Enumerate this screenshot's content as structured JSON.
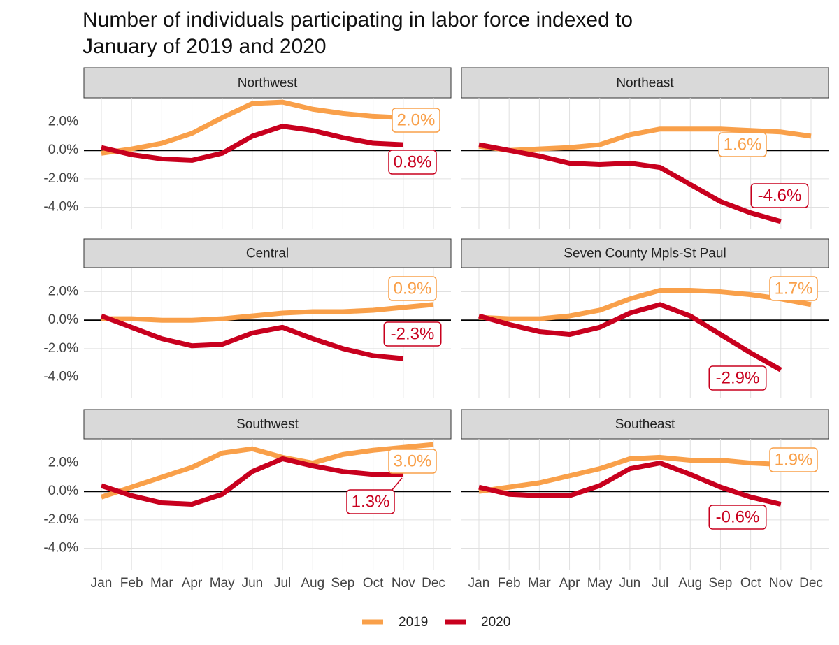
{
  "chart_data": {
    "type": "line",
    "title": [
      "Number of individuals participating in labor force indexed to",
      "January of 2019 and 2020"
    ],
    "categories": [
      "Jan",
      "Feb",
      "Mar",
      "Apr",
      "May",
      "Jun",
      "Jul",
      "Aug",
      "Sep",
      "Oct",
      "Nov",
      "Dec"
    ],
    "ylim": [
      -5.5,
      3.7
    ],
    "yticks": [
      {
        "value": 2,
        "label": "2.0%"
      },
      {
        "value": 0,
        "label": "0.0%"
      },
      {
        "value": -2,
        "label": "-2.0%"
      },
      {
        "value": -4,
        "label": "-4.0%"
      }
    ],
    "grid": true,
    "series": [
      {
        "name": "2019",
        "color": "#f9a04a"
      },
      {
        "name": "2020",
        "color": "#c8001e"
      }
    ],
    "panels": [
      {
        "title": "Northwest",
        "series": [
          {
            "values": [
              -0.2,
              0.1,
              0.5,
              1.2,
              2.3,
              3.3,
              3.4,
              2.9,
              2.6,
              2.4,
              2.3,
              2.2
            ]
          },
          {
            "values": [
              0.2,
              -0.3,
              -0.6,
              -0.7,
              -0.2,
              1.0,
              1.7,
              1.4,
              0.9,
              0.5,
              0.4,
              null
            ]
          }
        ],
        "annotations": [
          "2.0%",
          "0.8%"
        ]
      },
      {
        "title": "Northeast",
        "series": [
          {
            "values": [
              0.3,
              0.0,
              0.1,
              0.2,
              0.4,
              1.1,
              1.5,
              1.5,
              1.5,
              1.4,
              1.3,
              1.0
            ]
          },
          {
            "values": [
              0.4,
              0.0,
              -0.4,
              -0.9,
              -1.0,
              -0.9,
              -1.2,
              -2.4,
              -3.6,
              -4.4,
              -5.0,
              null
            ]
          }
        ],
        "annotations": [
          "1.6%",
          "-4.6%"
        ]
      },
      {
        "title": "Central",
        "series": [
          {
            "values": [
              0.1,
              0.1,
              0.0,
              0.0,
              0.1,
              0.3,
              0.5,
              0.6,
              0.6,
              0.7,
              0.9,
              1.1
            ]
          },
          {
            "values": [
              0.3,
              -0.5,
              -1.3,
              -1.8,
              -1.7,
              -0.9,
              -0.5,
              -1.3,
              -2.0,
              -2.5,
              -2.7,
              null
            ]
          }
        ],
        "annotations": [
          "0.9%",
          "-2.3%"
        ]
      },
      {
        "title": "Seven County Mpls-St Paul",
        "series": [
          {
            "values": [
              0.2,
              0.1,
              0.1,
              0.3,
              0.7,
              1.5,
              2.1,
              2.1,
              2.0,
              1.8,
              1.5,
              1.1
            ]
          },
          {
            "values": [
              0.3,
              -0.3,
              -0.8,
              -1.0,
              -0.5,
              0.5,
              1.1,
              0.3,
              -1.0,
              -2.3,
              -3.5,
              null
            ]
          }
        ],
        "annotations": [
          "1.7%",
          "-2.9%"
        ]
      },
      {
        "title": "Southwest",
        "series": [
          {
            "values": [
              -0.4,
              0.3,
              1.0,
              1.7,
              2.7,
              3.0,
              2.4,
              2.0,
              2.6,
              2.9,
              3.1,
              3.3
            ]
          },
          {
            "values": [
              0.4,
              -0.3,
              -0.8,
              -0.9,
              -0.2,
              1.4,
              2.3,
              1.8,
              1.4,
              1.2,
              1.2,
              null
            ]
          }
        ],
        "annotations": [
          "3.0%",
          "1.3%"
        ]
      },
      {
        "title": "Southeast",
        "series": [
          {
            "values": [
              0.0,
              0.3,
              0.6,
              1.1,
              1.6,
              2.3,
              2.4,
              2.2,
              2.2,
              2.0,
              1.9,
              1.8
            ]
          },
          {
            "values": [
              0.3,
              -0.2,
              -0.3,
              -0.3,
              0.4,
              1.6,
              2.0,
              1.2,
              0.3,
              -0.4,
              -0.9,
              null
            ]
          }
        ],
        "annotations": [
          "1.9%",
          "-0.6%"
        ]
      }
    ]
  }
}
